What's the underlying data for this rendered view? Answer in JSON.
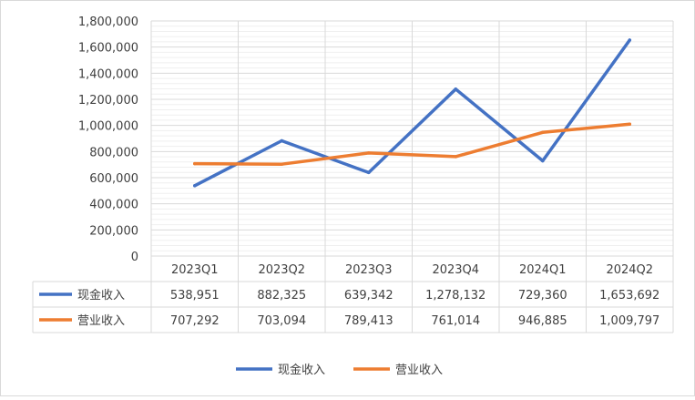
{
  "chart_data": {
    "type": "line",
    "title": "",
    "xlabel": "",
    "ylabel": "",
    "categories": [
      "2023Q1",
      "2023Q2",
      "2023Q3",
      "2023Q4",
      "2024Q1",
      "2024Q2"
    ],
    "series": [
      {
        "name": "现金收入",
        "color": "#4472c4",
        "values": [
          538951,
          882325,
          639342,
          1278132,
          729360,
          1653692
        ],
        "labels": [
          "538,951",
          "882,325",
          "639,342",
          "1,278,132",
          "729,360",
          "1,653,692"
        ]
      },
      {
        "name": "营业收入",
        "color": "#ed7d31",
        "values": [
          707292,
          703094,
          789413,
          761014,
          946885,
          1009797
        ],
        "labels": [
          "707,292",
          "703,094",
          "789,413",
          "761,014",
          "946,885",
          "1,009,797"
        ]
      }
    ],
    "ylim": [
      0,
      1800000
    ],
    "yticks": [
      "0",
      "200,000",
      "400,000",
      "600,000",
      "800,000",
      "1,000,000",
      "1,200,000",
      "1,400,000",
      "1,600,000",
      "1,800,000"
    ],
    "grid": true,
    "legend": "bottom",
    "data_table": true
  }
}
